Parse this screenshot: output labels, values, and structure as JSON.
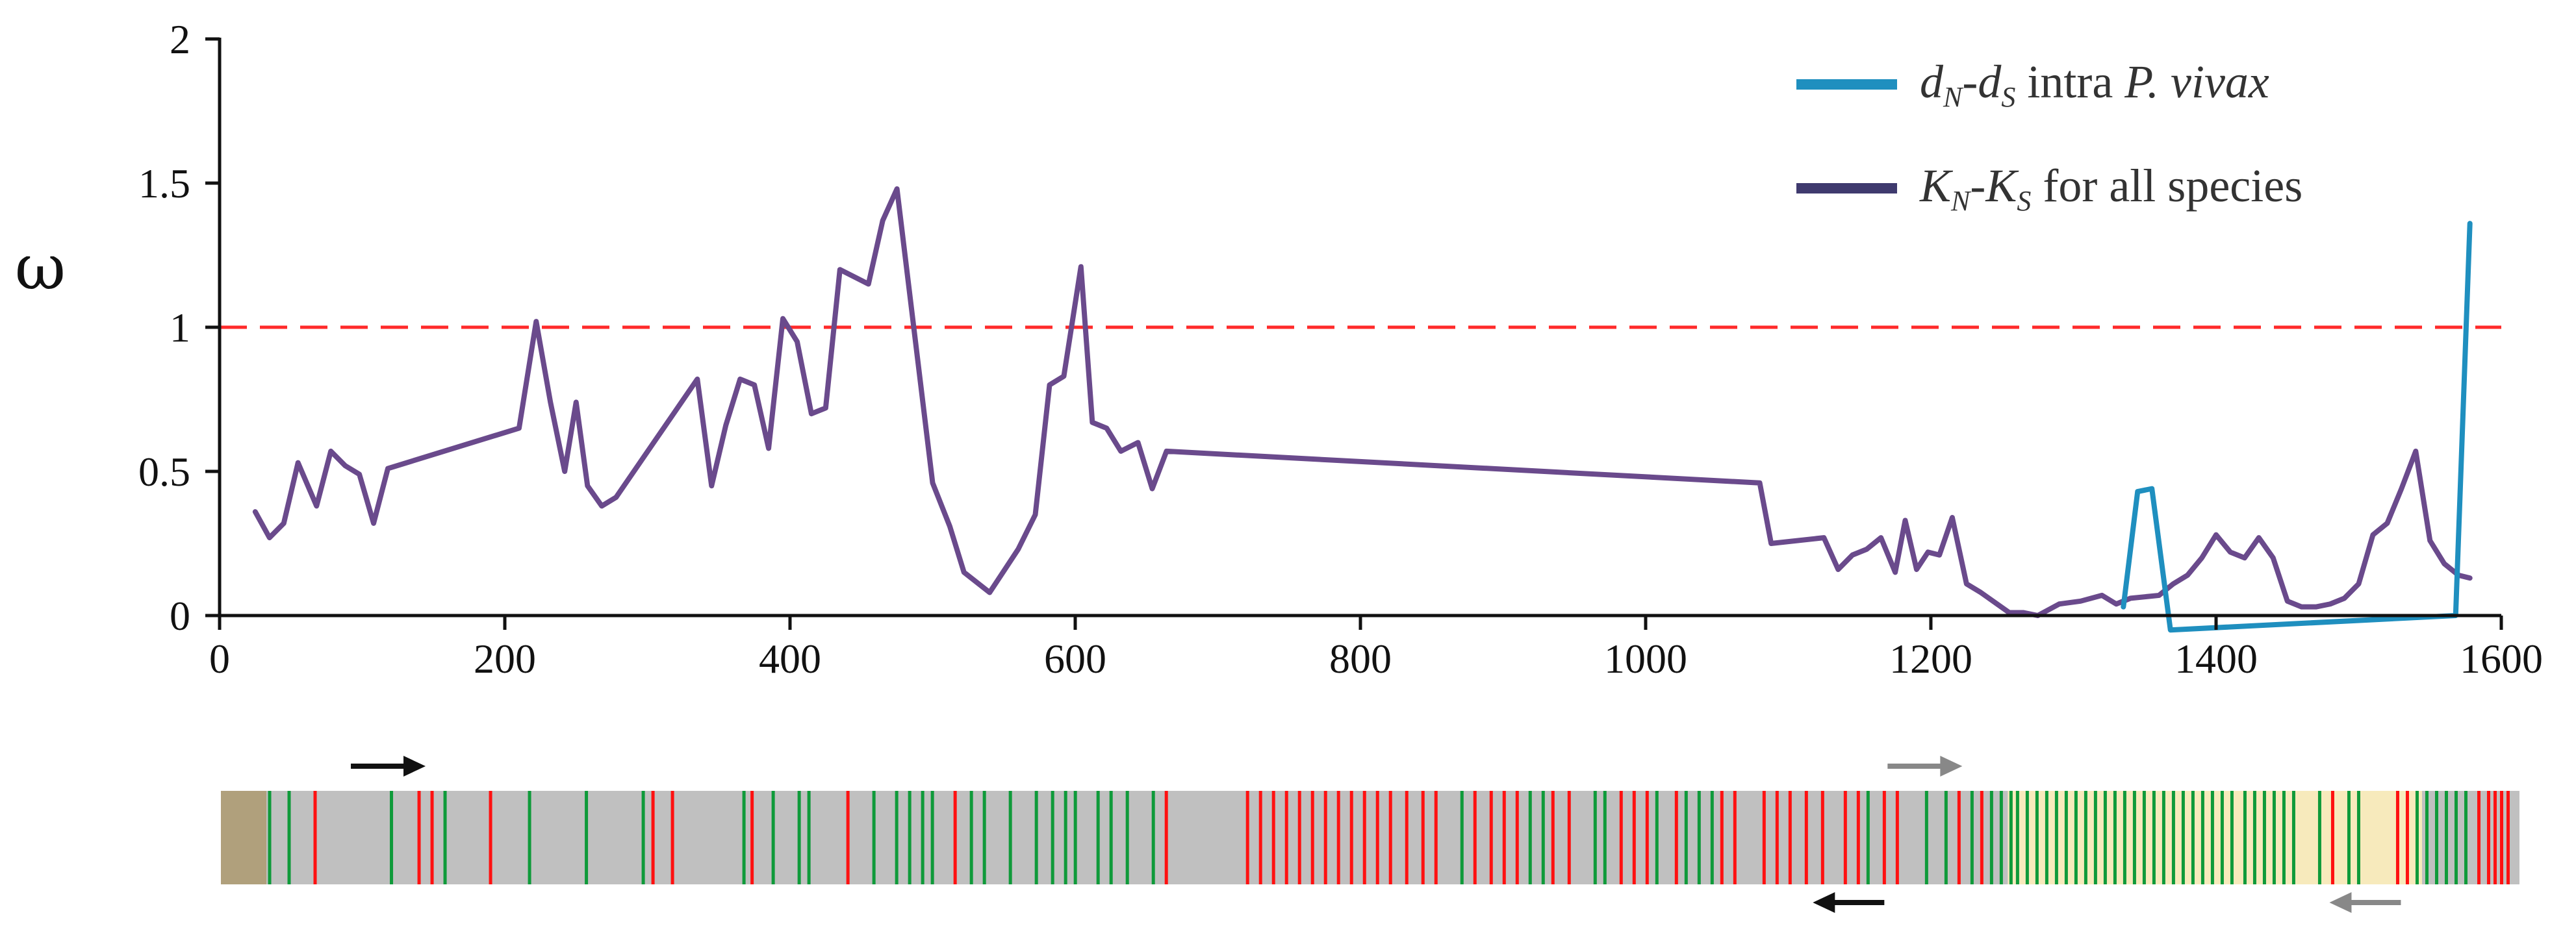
{
  "chart_data": {
    "type": "line",
    "ylabel": "ω",
    "xlim": [
      0,
      1600
    ],
    "ylim": [
      0,
      2
    ],
    "x_ticks": [
      "0",
      "200",
      "400",
      "600",
      "800",
      "1000",
      "1200",
      "1400",
      "1600"
    ],
    "y_ticks": [
      "0",
      "0.5",
      "1",
      "1.5",
      "2"
    ],
    "y_tick_values": [
      0,
      0.5,
      1,
      1.5,
      2
    ],
    "x_tick_values": [
      0,
      200,
      400,
      600,
      800,
      1000,
      1200,
      1400,
      1600
    ],
    "reference_line": {
      "y": 1,
      "color": "#ff2a2a",
      "style": "dashed"
    },
    "legend": {
      "placement": "top-right",
      "entries": [
        {
          "main": "d",
          "sub1": "N",
          "mid": "-d",
          "sub2": "S",
          "text": " intra ",
          "italic_tail": "P. vivax",
          "color": "#1f8fbf"
        },
        {
          "main": "K",
          "sub1": "N",
          "mid": "-K",
          "sub2": "S",
          "text": " for all species",
          "italic_tail": "",
          "color": "#3f3a6e"
        }
      ]
    },
    "series": [
      {
        "color": "#6a4a8c",
        "x": [
          25,
          35,
          45,
          55,
          68,
          78,
          88,
          98,
          108,
          118,
          210,
          222,
          232,
          242,
          250,
          258,
          268,
          278,
          335,
          345,
          355,
          365,
          375,
          385,
          395,
          405,
          415,
          425,
          435,
          455,
          465,
          475,
          500,
          512,
          522,
          540,
          560,
          572,
          582,
          592,
          604,
          612,
          622,
          632,
          644,
          654,
          664,
          1080,
          1088,
          1125,
          1135,
          1145,
          1155,
          1165,
          1175,
          1182,
          1190,
          1198,
          1206,
          1215,
          1225,
          1235,
          1255,
          1265,
          1275,
          1290,
          1305,
          1320,
          1330,
          1340,
          1360,
          1370,
          1380,
          1390,
          1400,
          1410,
          1420,
          1430,
          1440,
          1450,
          1460,
          1470,
          1480,
          1490,
          1500,
          1510,
          1520,
          1530,
          1540,
          1550,
          1560,
          1570,
          1578
        ],
        "values": [
          0.36,
          0.27,
          0.32,
          0.53,
          0.38,
          0.57,
          0.52,
          0.49,
          0.32,
          0.51,
          0.65,
          1.02,
          0.74,
          0.5,
          0.74,
          0.45,
          0.38,
          0.41,
          0.82,
          0.45,
          0.66,
          0.82,
          0.8,
          0.58,
          1.03,
          0.95,
          0.7,
          0.72,
          1.2,
          1.15,
          1.37,
          1.48,
          0.46,
          0.31,
          0.15,
          0.08,
          0.23,
          0.35,
          0.8,
          0.83,
          1.21,
          0.67,
          0.65,
          0.57,
          0.6,
          0.44,
          0.57,
          0.46,
          0.25,
          0.27,
          0.16,
          0.21,
          0.23,
          0.27,
          0.15,
          0.33,
          0.16,
          0.22,
          0.21,
          0.34,
          0.11,
          0.08,
          0.01,
          0.01,
          0.0,
          0.04,
          0.05,
          0.07,
          0.04,
          0.06,
          0.07,
          0.11,
          0.14,
          0.2,
          0.28,
          0.22,
          0.2,
          0.27,
          0.2,
          0.05,
          0.03,
          0.03,
          0.04,
          0.06,
          0.11,
          0.28,
          0.32,
          0.44,
          0.57,
          0.26,
          0.18,
          0.14,
          0.13
        ]
      },
      {
        "color": "#1f8fbf",
        "x": [
          1335,
          1345,
          1355,
          1368,
          1568,
          1578
        ],
        "values": [
          0.03,
          0.43,
          0.44,
          -0.05,
          0.0,
          1.36
        ]
      }
    ]
  },
  "gene_bar": {
    "colors": {
      "background": "#c0c0c0",
      "start_block": "#b0a07c",
      "light_region": "#f7eabc",
      "green": "#0f9a3a",
      "red": "#ff1111",
      "arrow_dark": "#111111",
      "arrow_gray": "#888888"
    },
    "green_marks": [
      30,
      42,
      105,
      138,
      190,
      225,
      260,
      322,
      340,
      356,
      362,
      402,
      416,
      424,
      432,
      438,
      462,
      470,
      486,
      502,
      512,
      520,
      526,
      540,
      548,
      558,
      574,
      764,
      806,
      814,
      846,
      852,
      884,
      902,
      910,
      918,
      1014,
      1050,
      1062,
      1078,
      1090,
      1096,
      1102,
      1106,
      1112,
      1118,
      1124,
      1130,
      1136,
      1142,
      1148,
      1154,
      1160,
      1166,
      1172,
      1178,
      1184,
      1190,
      1196,
      1202,
      1208,
      1214,
      1220,
      1226,
      1232,
      1238,
      1246,
      1252,
      1258,
      1264,
      1270,
      1276,
      1292,
      1310,
      1316,
      1352,
      1358,
      1364,
      1370,
      1376,
      1382
    ],
    "red_marks": [
      58,
      122,
      130,
      166,
      266,
      278,
      327,
      386,
      452,
      582,
      632,
      640,
      648,
      656,
      664,
      672,
      680,
      688,
      696,
      704,
      712,
      720,
      730,
      740,
      748,
      772,
      782,
      790,
      798,
      820,
      830,
      862,
      870,
      878,
      896,
      924,
      932,
      950,
      958,
      966,
      976,
      986,
      1000,
      1008,
      1024,
      1032,
      1070,
      1084,
      1300,
      1340,
      1346,
      1390,
      1396,
      1400,
      1404,
      1408
    ],
    "arrows": [
      {
        "x_start": 80,
        "x_end": 126,
        "row": "top",
        "direction": "right",
        "tone": "dark"
      },
      {
        "x_start": 1026,
        "x_end": 1072,
        "row": "top",
        "direction": "right",
        "tone": "gray"
      },
      {
        "x_start": 1024,
        "x_end": 980,
        "row": "bottom",
        "direction": "left",
        "tone": "dark"
      },
      {
        "x_start": 1342,
        "x_end": 1298,
        "row": "bottom",
        "direction": "left",
        "tone": "gray"
      }
    ]
  }
}
